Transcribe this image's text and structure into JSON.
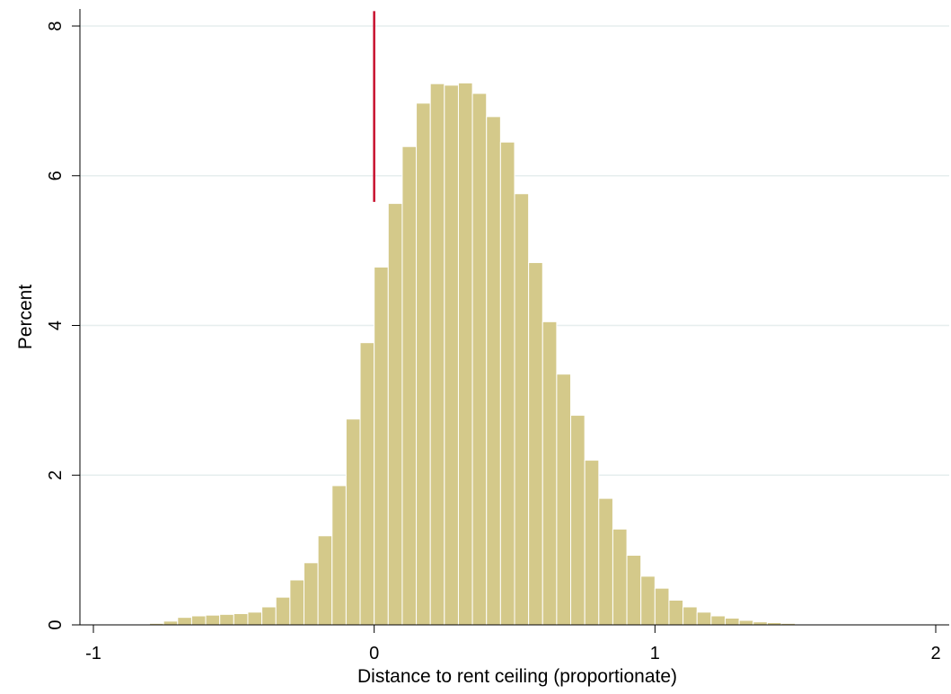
{
  "chart_data": {
    "type": "bar",
    "title": "",
    "xlabel": "Distance to rent ceiling (proportionate)",
    "ylabel": "Percent",
    "xlim": [
      -1,
      2
    ],
    "ylim": [
      0,
      8
    ],
    "xticks": [
      "-1",
      "0",
      "1",
      "2"
    ],
    "yticks": [
      "0",
      "2",
      "4",
      "6",
      "8"
    ],
    "grid": true,
    "bin_width": 0.05,
    "bin_start": -0.8,
    "values": [
      0.02,
      0.05,
      0.1,
      0.12,
      0.13,
      0.14,
      0.15,
      0.17,
      0.24,
      0.37,
      0.6,
      0.83,
      1.19,
      1.86,
      2.75,
      3.77,
      4.78,
      5.63,
      6.39,
      6.97,
      7.23,
      7.21,
      7.24,
      7.1,
      6.79,
      6.45,
      5.76,
      4.84,
      4.05,
      3.35,
      2.8,
      2.2,
      1.69,
      1.28,
      0.93,
      0.65,
      0.49,
      0.33,
      0.24,
      0.17,
      0.12,
      0.09,
      0.06,
      0.04,
      0.03,
      0.02,
      0.01,
      0.01,
      0.01,
      0.0,
      0.0,
      0.0,
      0.0,
      0.0,
      0.0,
      0.0,
      0.0,
      0.0,
      0.0
    ],
    "reference_line": {
      "x": 0,
      "y_top": 8.2
    },
    "colors": {
      "bars": "#d4c98a",
      "bar_outline": "#ffffff",
      "grid": "#e6eeee",
      "reference_line": "#c8102e",
      "axis": "#000000"
    }
  }
}
